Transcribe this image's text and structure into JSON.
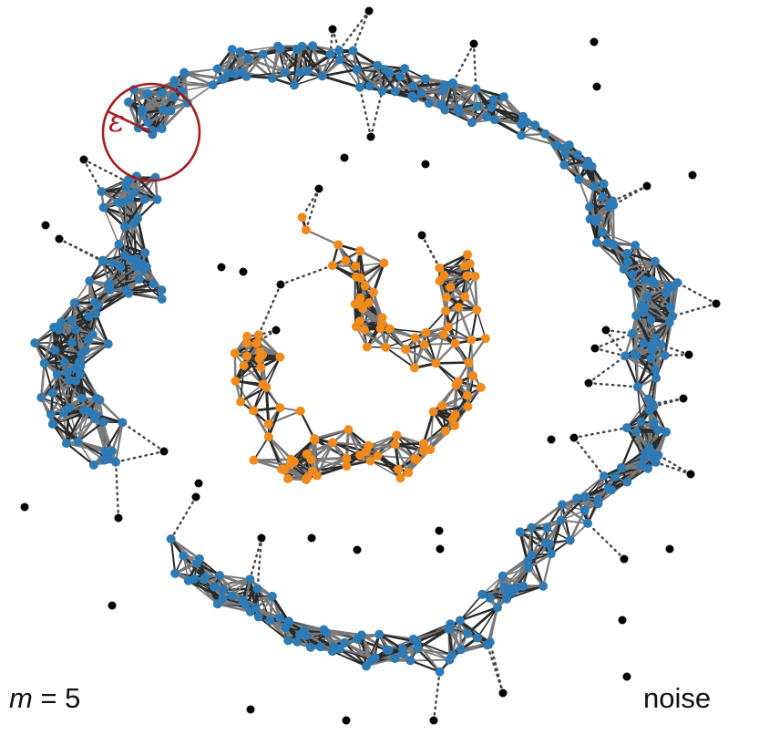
{
  "parameters": {
    "m_symbol": "m",
    "m_operator": " = ",
    "m_value": "5",
    "epsilon_symbol": "ε"
  },
  "legend": {
    "noise_label": "noise"
  },
  "colors": {
    "outer_cluster": "#2e7ab5",
    "inner_cluster": "#f28a1c",
    "noise": "#000000",
    "edge_dark": "#2a2a2a",
    "edge_light": "#7a7a7a",
    "epsilon_circle": "#a51c1c"
  },
  "icons": {
    "epsilon_indicator": "circle-radius-icon"
  }
}
